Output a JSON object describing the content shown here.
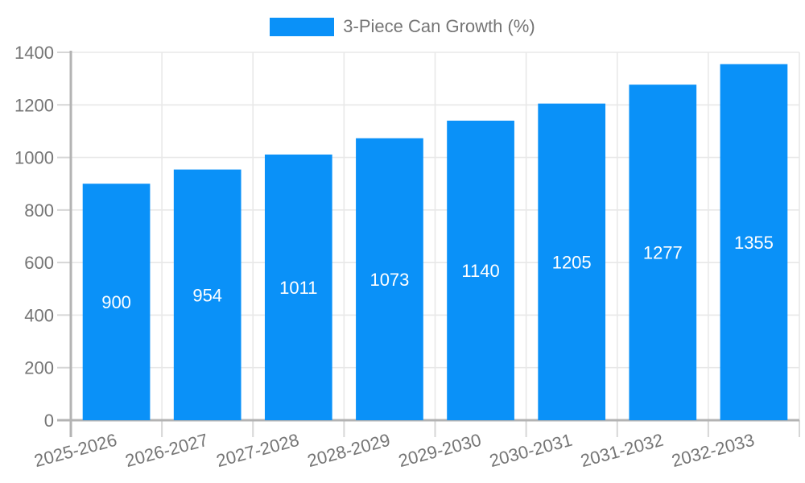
{
  "legend": {
    "label": "3-Piece Can Growth (%)"
  },
  "chart_data": {
    "type": "bar",
    "title": "3-Piece Can Growth (%)",
    "series_name": "3-Piece Can Growth (%)",
    "categories": [
      "2025-2026",
      "2026-2027",
      "2027-2028",
      "2028-2029",
      "2029-2030",
      "2030-2031",
      "2031-2032",
      "2032-2033"
    ],
    "values": [
      900,
      954,
      1011,
      1073,
      1140,
      1205,
      1277,
      1355
    ],
    "value_labels": [
      "900",
      "954",
      "1011",
      "1073",
      "1140",
      "1205",
      "1277",
      "1355"
    ],
    "xlabel": "",
    "ylabel": "",
    "ylim": [
      0,
      1400
    ],
    "yticks": [
      0,
      200,
      400,
      600,
      800,
      1000,
      1200,
      1400
    ],
    "grid": true,
    "legend_position": "top",
    "bar_color": "#0a91f8",
    "value_label_color": "#ffffff",
    "axis_text_color": "#757575",
    "grid_color": "#e8e8e8",
    "axis_line_color": "#b3b3b3",
    "tick_color": "#d6d6d6",
    "x_label_rotation_deg": -15
  }
}
